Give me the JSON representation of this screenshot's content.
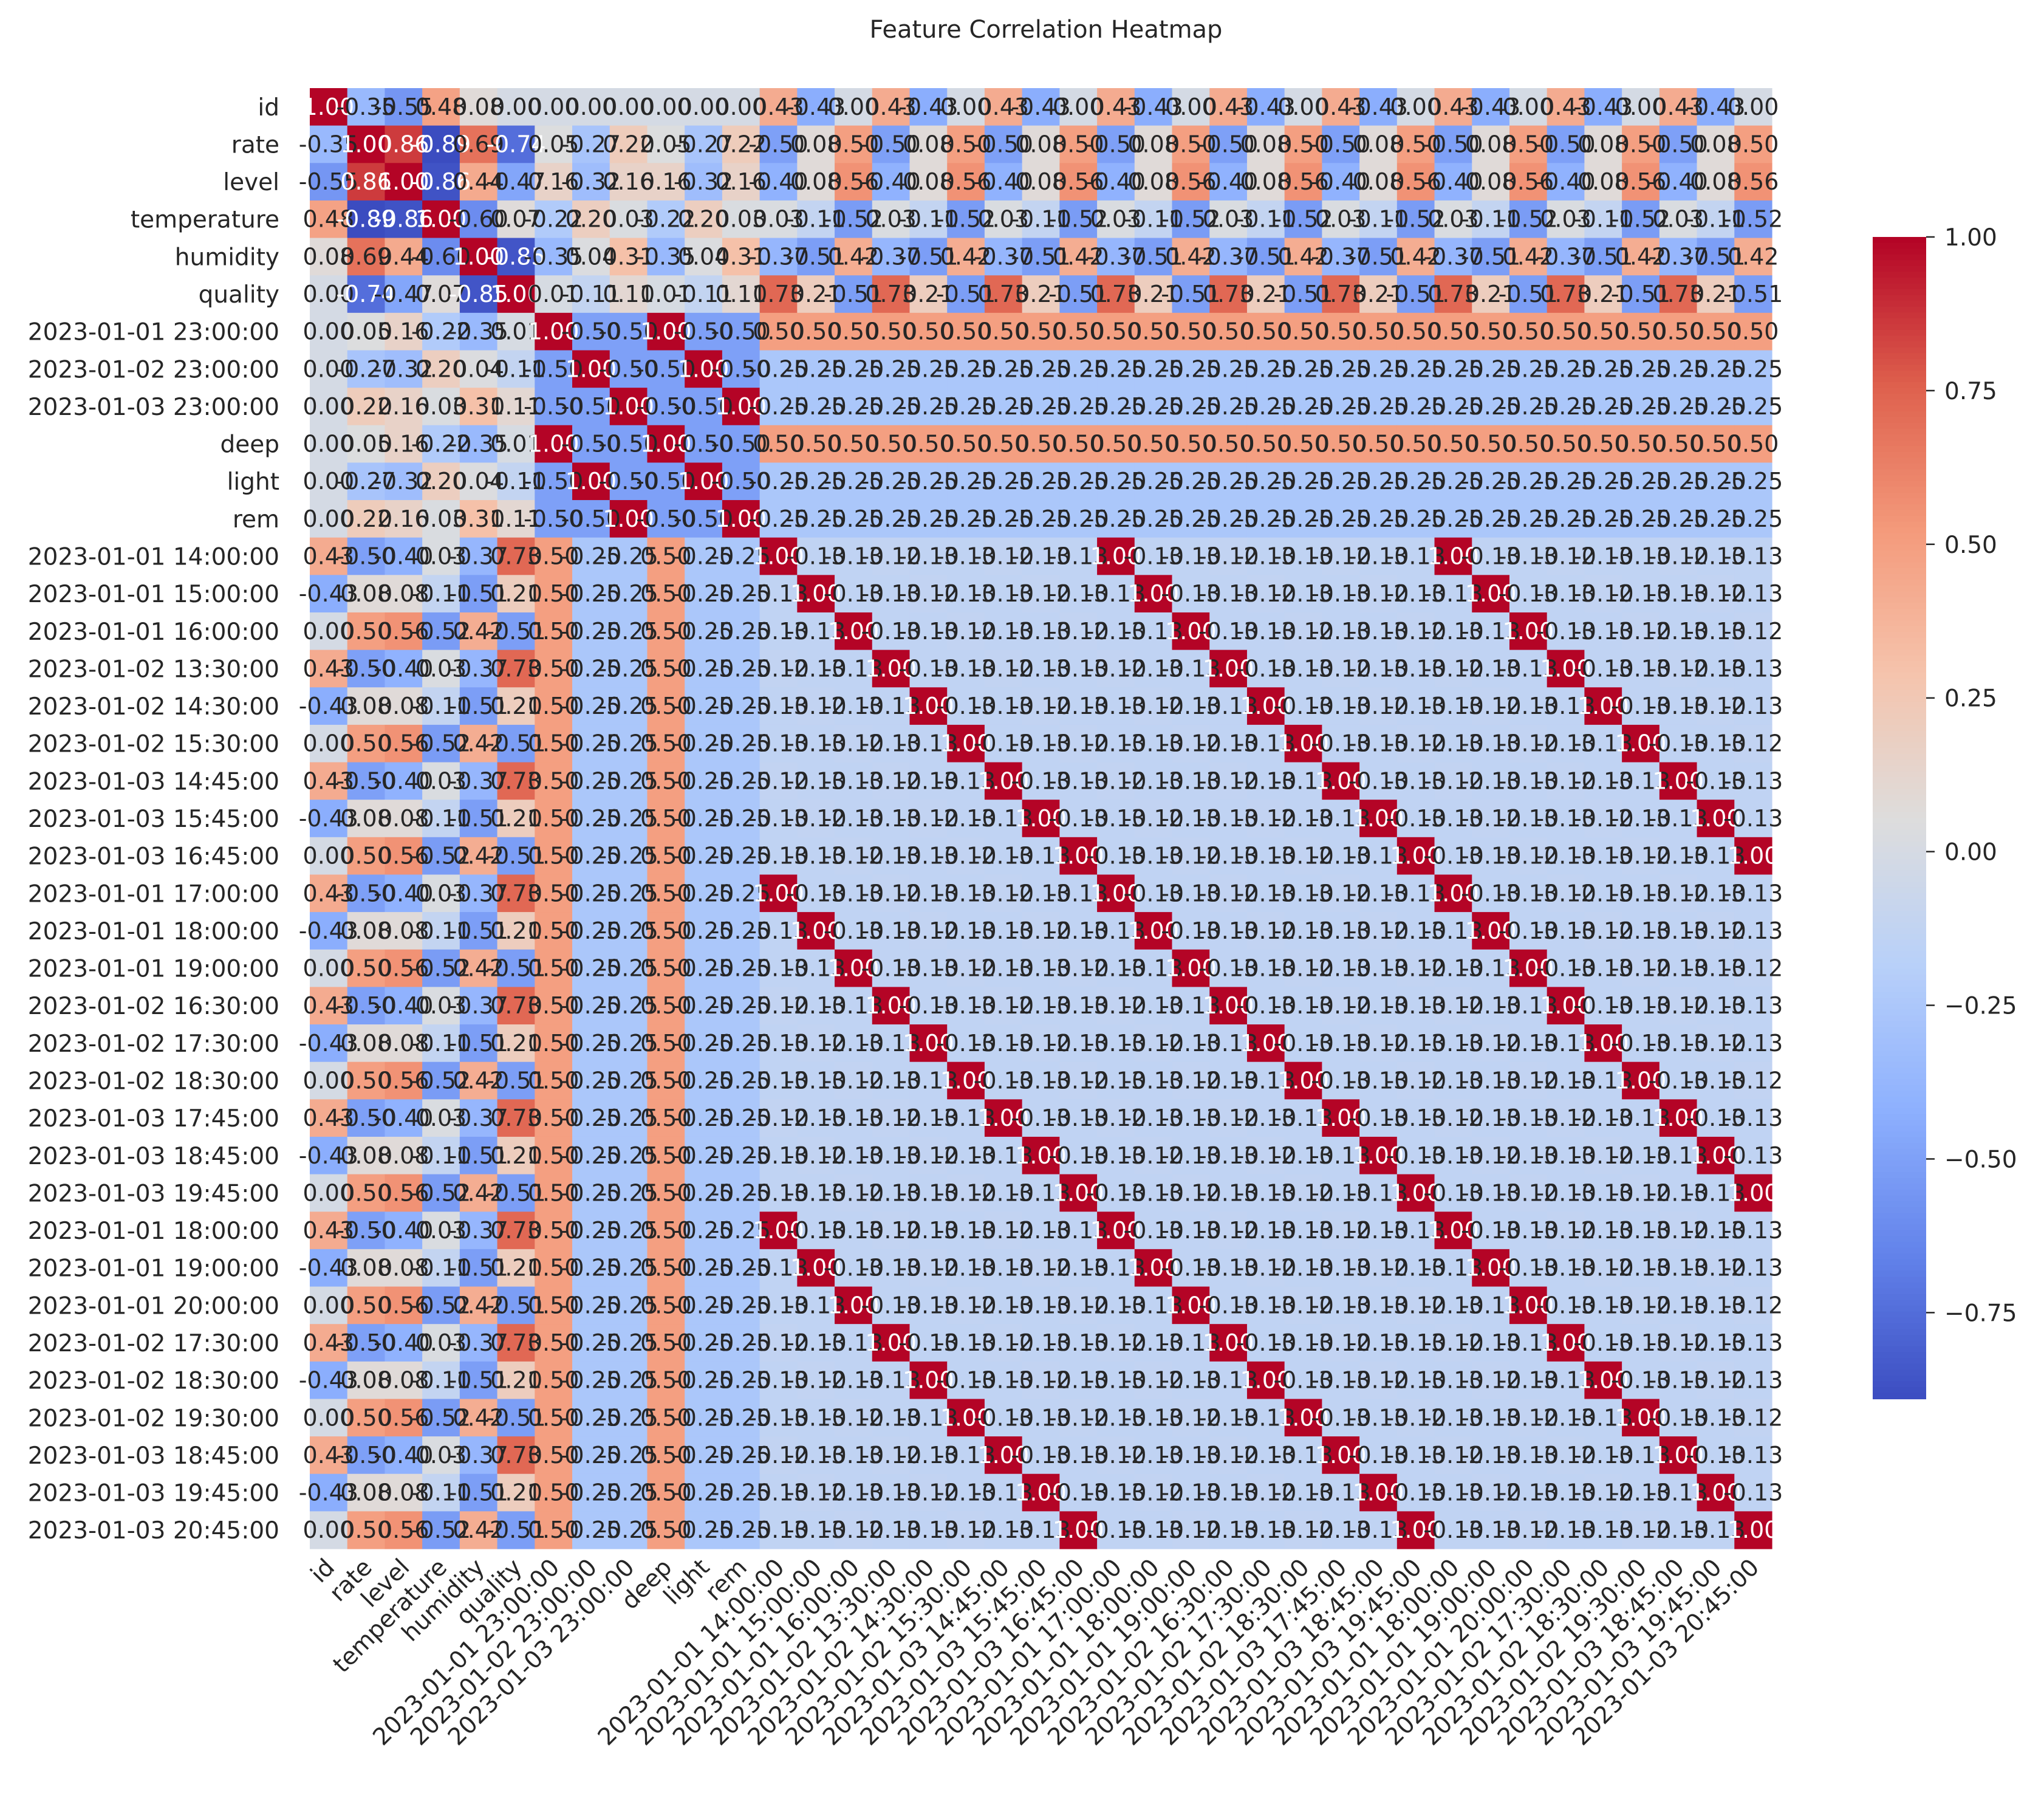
{
  "chart_data": {
    "type": "heatmap",
    "title": "Feature Correlation Heatmap",
    "xlabel": "",
    "ylabel": "",
    "labels": [
      "id",
      "rate",
      "level",
      "temperature",
      "humidity",
      "quality",
      "2023-01-01 23:00:00",
      "2023-01-02 23:00:00",
      "2023-01-03 23:00:00",
      "deep",
      "light",
      "rem",
      "2023-01-01 14:00:00",
      "2023-01-01 15:00:00",
      "2023-01-01 16:00:00",
      "2023-01-02 13:30:00",
      "2023-01-02 14:30:00",
      "2023-01-02 15:30:00",
      "2023-01-03 14:45:00",
      "2023-01-03 15:45:00",
      "2023-01-03 16:45:00",
      "2023-01-01 17:00:00",
      "2023-01-01 18:00:00",
      "2023-01-01 19:00:00",
      "2023-01-02 16:30:00",
      "2023-01-02 17:30:00",
      "2023-01-02 18:30:00",
      "2023-01-03 17:45:00",
      "2023-01-03 18:45:00",
      "2023-01-03 19:45:00",
      "2023-01-01 18:00:00",
      "2023-01-01 19:00:00",
      "2023-01-01 20:00:00",
      "2023-01-02 17:30:00",
      "2023-01-02 18:30:00",
      "2023-01-02 19:30:00",
      "2023-01-03 18:45:00",
      "2023-01-03 19:45:00",
      "2023-01-03 20:45:00"
    ],
    "base": [
      [
        1.0,
        -0.35,
        -0.55,
        0.48,
        0.08,
        0.0
      ],
      [
        -0.35,
        1.0,
        0.86,
        -0.89,
        0.69,
        -0.74
      ],
      [
        -0.55,
        0.86,
        1.0,
        -0.86,
        0.44,
        -0.47
      ],
      [
        0.48,
        -0.89,
        -0.86,
        1.0,
        -0.6,
        0.07
      ],
      [
        0.08,
        0.69,
        0.44,
        -0.6,
        1.0,
        -0.85
      ],
      [
        0.0,
        -0.74,
        -0.47,
        0.07,
        -0.85,
        1.0
      ]
    ],
    "feature_vs_sleep": [
      [
        0.0,
        -0.0,
        -0.0
      ],
      [
        0.05,
        -0.27,
        0.22
      ],
      [
        0.16,
        -0.32,
        0.16
      ],
      [
        -0.22,
        0.2,
        0.03
      ],
      [
        -0.35,
        0.04,
        0.31
      ],
      [
        0.01,
        -0.11,
        0.11
      ]
    ],
    "feature_vs_time_groups": [
      [
        0.43,
        -0.43,
        0.0
      ],
      [
        -0.5,
        0.08,
        0.5
      ],
      [
        -0.4,
        0.08,
        0.56
      ],
      [
        0.03,
        -0.11,
        -0.52
      ],
      [
        -0.37,
        -0.51,
        0.42
      ],
      [
        0.73,
        0.21,
        -0.51
      ]
    ],
    "sleep_vs_time_groups": [
      [
        0.5,
        0.5,
        0.5
      ],
      [
        -0.25,
        -0.25,
        -0.25
      ],
      [
        -0.25,
        -0.25,
        -0.25
      ]
    ],
    "group_offdiag_same_minute": -0.12,
    "group_offdiag_other": -0.13,
    "colorbar": {
      "ticks": [
        "1.00",
        "0.75",
        "0.50",
        "0.25",
        "0.00",
        "−0.25",
        "−0.50",
        "−0.75"
      ],
      "min": -0.89,
      "max": 1.0,
      "colormap": "coolwarm"
    },
    "colors": {
      "cold": "#3b4cc0",
      "neutral": "#dddddd",
      "hot": "#b40426"
    }
  }
}
